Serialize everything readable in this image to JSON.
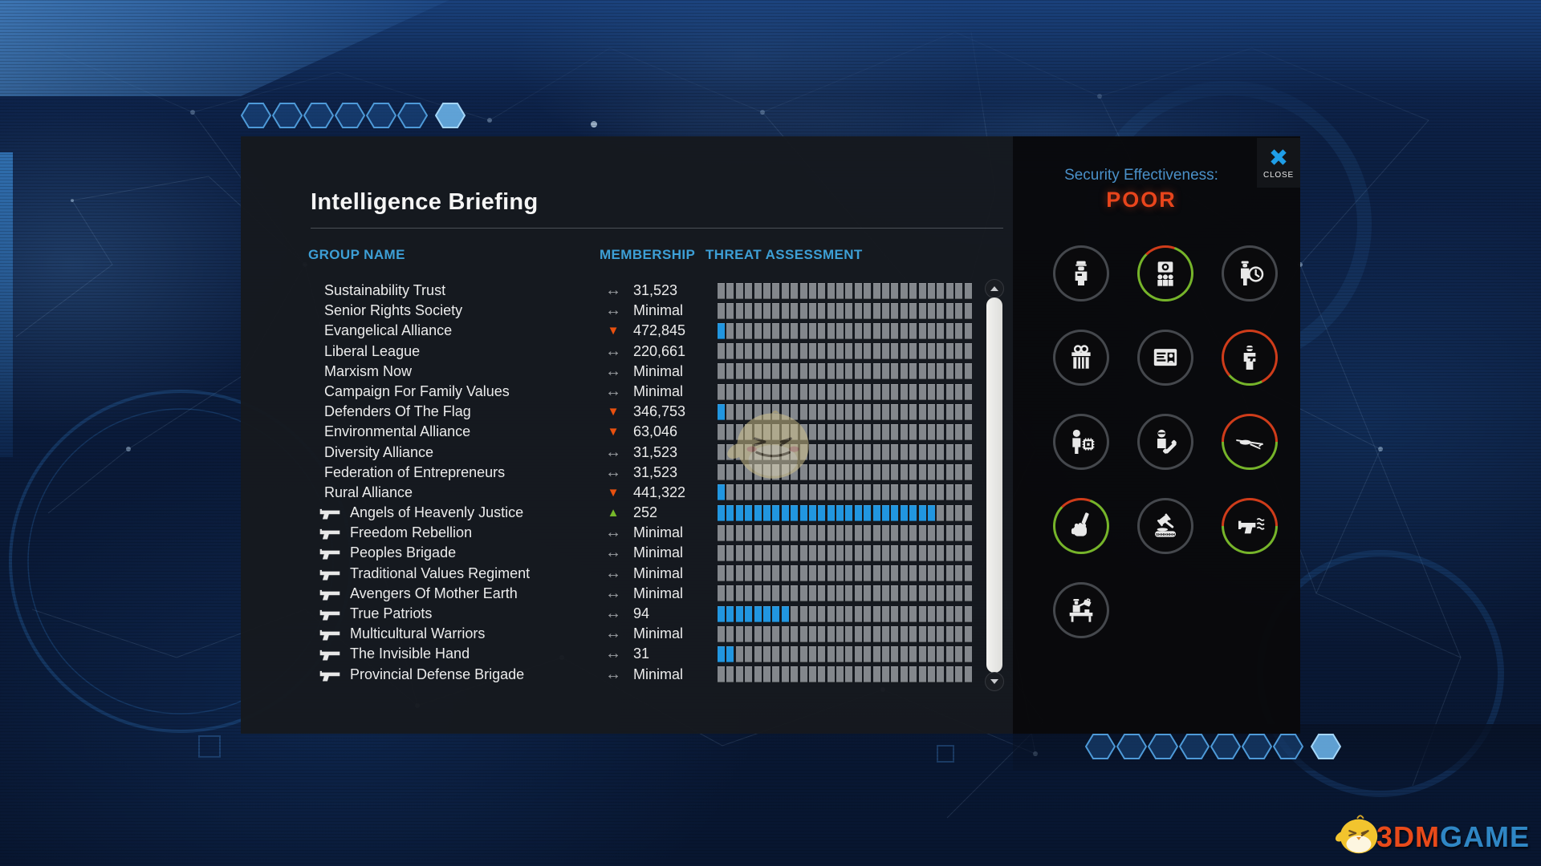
{
  "app": {
    "close": "CLOSE"
  },
  "briefing": {
    "title": "Intelligence Briefing",
    "columns": {
      "group": "GROUP NAME",
      "membership": "MEMBERSHIP",
      "threat": "THREAT ASSESSMENT"
    },
    "trend_glyphs": {
      "flat": "↔",
      "down": "▼",
      "up": "▲"
    },
    "bar_segments": 28,
    "rows": [
      {
        "name": "Sustainability Trust",
        "armed": false,
        "trend": "flat",
        "membership": "31,523",
        "threat": 0
      },
      {
        "name": "Senior Rights Society",
        "armed": false,
        "trend": "flat",
        "membership": "Minimal",
        "threat": 0
      },
      {
        "name": "Evangelical Alliance",
        "armed": false,
        "trend": "down",
        "membership": "472,845",
        "threat": 1
      },
      {
        "name": "Liberal League",
        "armed": false,
        "trend": "flat",
        "membership": "220,661",
        "threat": 0
      },
      {
        "name": "Marxism Now",
        "armed": false,
        "trend": "flat",
        "membership": "Minimal",
        "threat": 0
      },
      {
        "name": "Campaign For Family Values",
        "armed": false,
        "trend": "flat",
        "membership": "Minimal",
        "threat": 0
      },
      {
        "name": "Defenders Of The Flag",
        "armed": false,
        "trend": "down",
        "membership": "346,753",
        "threat": 1
      },
      {
        "name": "Environmental Alliance",
        "armed": false,
        "trend": "down",
        "membership": "63,046",
        "threat": 0
      },
      {
        "name": "Diversity Alliance",
        "armed": false,
        "trend": "flat",
        "membership": "31,523",
        "threat": 0
      },
      {
        "name": "Federation of Entrepreneurs",
        "armed": false,
        "trend": "flat",
        "membership": "31,523",
        "threat": 0
      },
      {
        "name": "Rural Alliance",
        "armed": false,
        "trend": "down",
        "membership": "441,322",
        "threat": 1
      },
      {
        "name": "Angels of Heavenly Justice",
        "armed": true,
        "trend": "up",
        "membership": "252",
        "threat": 24
      },
      {
        "name": "Freedom Rebellion",
        "armed": true,
        "trend": "flat",
        "membership": "Minimal",
        "threat": 0
      },
      {
        "name": "Peoples Brigade",
        "armed": true,
        "trend": "flat",
        "membership": "Minimal",
        "threat": 0
      },
      {
        "name": "Traditional Values Regiment",
        "armed": true,
        "trend": "flat",
        "membership": "Minimal",
        "threat": 0
      },
      {
        "name": "Avengers Of Mother Earth",
        "armed": true,
        "trend": "flat",
        "membership": "Minimal",
        "threat": 0
      },
      {
        "name": "True Patriots",
        "armed": true,
        "trend": "flat",
        "membership": "94",
        "threat": 8
      },
      {
        "name": "Multicultural Warriors",
        "armed": true,
        "trend": "flat",
        "membership": "Minimal",
        "threat": 0
      },
      {
        "name": "The Invisible Hand",
        "armed": true,
        "trend": "flat",
        "membership": "31",
        "threat": 2
      },
      {
        "name": "Provincial Defense Brigade",
        "armed": true,
        "trend": "flat",
        "membership": "Minimal",
        "threat": 0
      }
    ]
  },
  "security": {
    "label": "Security Effectiveness:",
    "value": "POOR"
  },
  "actions": [
    {
      "icon": "police-officer-icon",
      "ring": "gray"
    },
    {
      "icon": "camera-people-icon",
      "ring": "mostly-green"
    },
    {
      "icon": "officer-clock-icon",
      "ring": "gray"
    },
    {
      "icon": "gift-icon",
      "ring": "gray"
    },
    {
      "icon": "id-card-icon",
      "ring": "gray"
    },
    {
      "icon": "guard-gun-icon",
      "ring": "mostly-red"
    },
    {
      "icon": "person-chip-icon",
      "ring": "gray"
    },
    {
      "icon": "person-phone-icon",
      "ring": "gray"
    },
    {
      "icon": "drone-icon",
      "ring": "half-red-green"
    },
    {
      "icon": "fist-pen-icon",
      "ring": "mostly-green"
    },
    {
      "icon": "gavel-shh-icon",
      "ring": "gray",
      "label": "SHHHHHH"
    },
    {
      "icon": "pistol-waves-icon",
      "ring": "half-red-green"
    },
    {
      "icon": "desk-inspection-icon",
      "ring": "gray"
    }
  ],
  "watermark": {
    "brand_red": "3DM",
    "brand_blue": "GAME"
  },
  "colors": {
    "accent_blue": "#3d9fd6",
    "threat_fill": "#2196e0",
    "poor_red": "#e8451c",
    "trend_down": "#e8500f",
    "trend_up": "#76b82a",
    "ring_green": "#76b42a",
    "ring_red": "#cf3c1a",
    "ring_gray": "#45484d"
  }
}
